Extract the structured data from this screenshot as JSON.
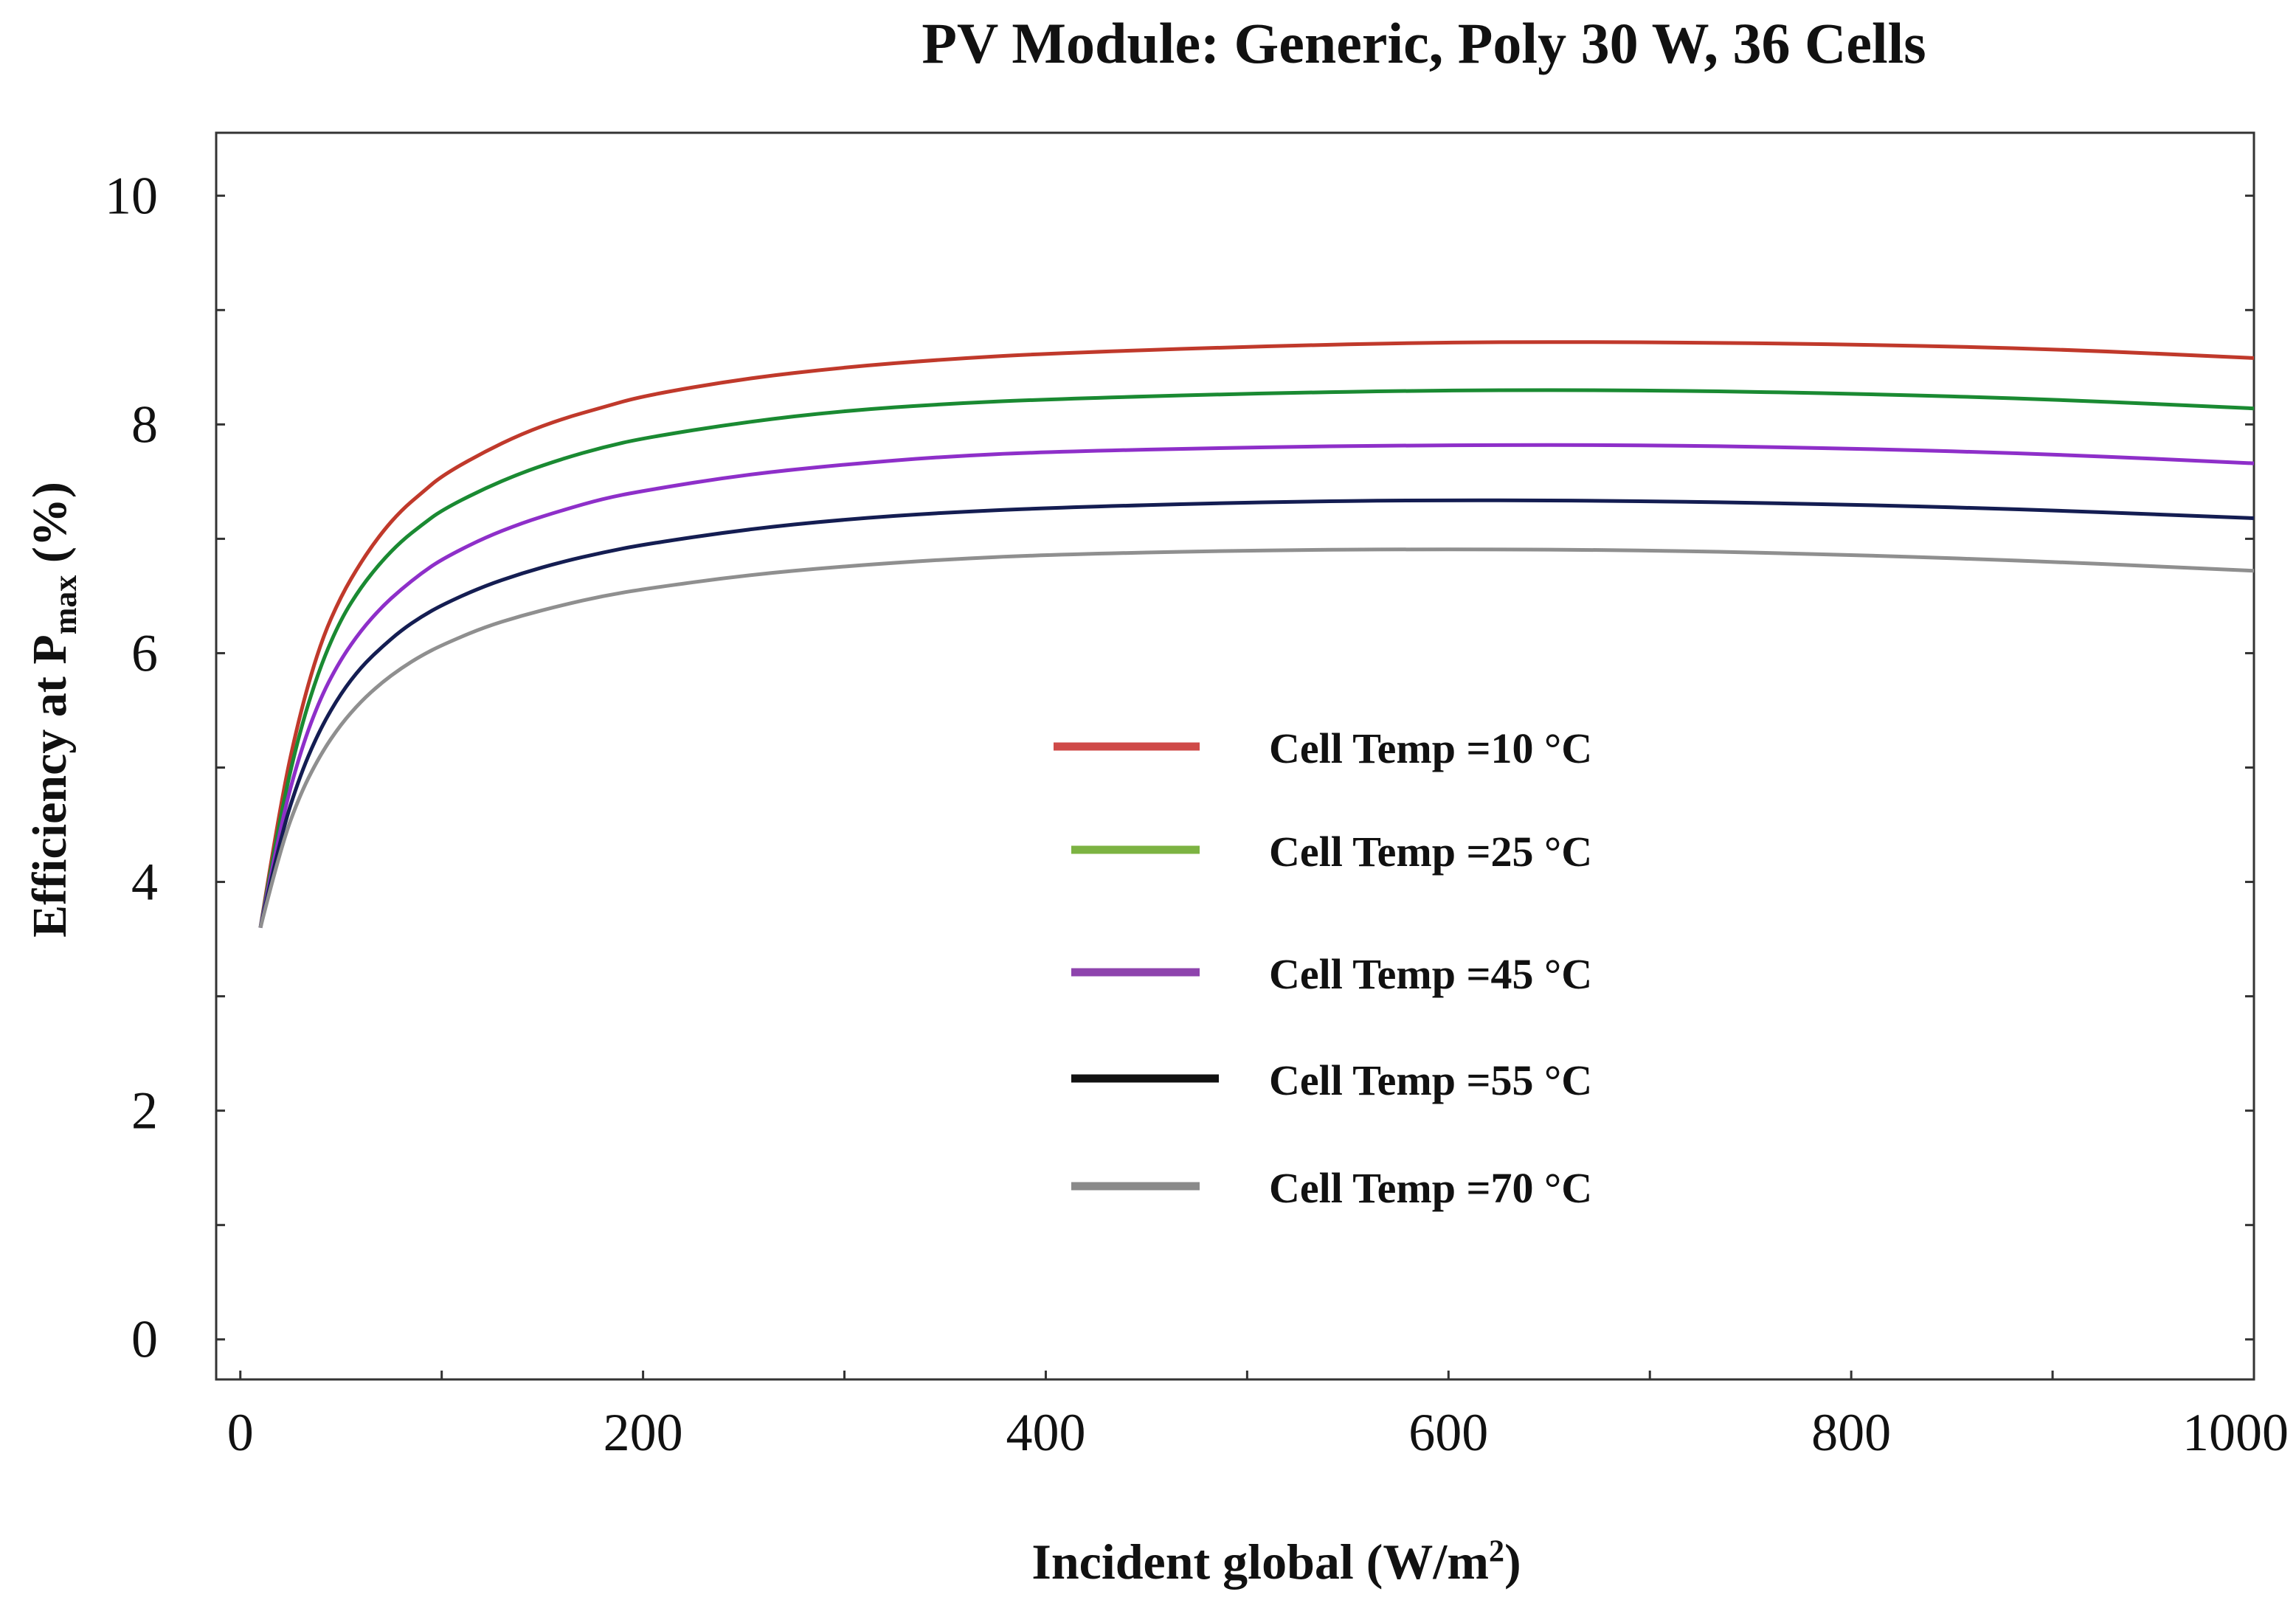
{
  "chart_data": {
    "type": "line",
    "title": "PV Module: Generic, Poly 30 W, 36 Cells",
    "ylabel_main": "Efficiency at P",
    "ylabel_sub": "max",
    "ylabel_tail": " (%)",
    "xlabel_main": "Incident global (W/m",
    "xlabel_sup": "2",
    "xlabel_tail": ")",
    "xlim": [
      -12,
      1000
    ],
    "ylim": [
      -0.35,
      10.55
    ],
    "x_ticks": [
      0,
      200,
      400,
      600,
      800,
      1000
    ],
    "y_ticks": [
      0,
      2,
      4,
      6,
      8,
      10
    ],
    "x": [
      10,
      20,
      30,
      40,
      50,
      60,
      70,
      80,
      90,
      100,
      120,
      140,
      160,
      180,
      200,
      250,
      300,
      350,
      400,
      500,
      600,
      700,
      800,
      900,
      1000
    ],
    "series": [
      {
        "name": "Cell Temp =10 °C",
        "color": "#c0392b",
        "values": [
          3.6,
          4.7,
          5.5,
          6.1,
          6.5,
          6.8,
          7.05,
          7.25,
          7.4,
          7.55,
          7.75,
          7.92,
          8.05,
          8.15,
          8.25,
          8.4,
          8.5,
          8.57,
          8.62,
          8.68,
          8.72,
          8.72,
          8.7,
          8.66,
          8.58
        ]
      },
      {
        "name": "Cell Temp =25 °C",
        "color": "#1a8a32",
        "values": [
          3.6,
          4.6,
          5.35,
          5.9,
          6.3,
          6.58,
          6.8,
          6.98,
          7.12,
          7.25,
          7.43,
          7.58,
          7.7,
          7.8,
          7.88,
          8.02,
          8.12,
          8.18,
          8.22,
          8.27,
          8.3,
          8.3,
          8.27,
          8.22,
          8.14
        ]
      },
      {
        "name": "Cell Temp =45 °C",
        "color": "#8e2fc9",
        "values": [
          3.6,
          4.5,
          5.15,
          5.62,
          5.95,
          6.2,
          6.4,
          6.56,
          6.7,
          6.82,
          7.0,
          7.14,
          7.25,
          7.35,
          7.42,
          7.56,
          7.65,
          7.72,
          7.76,
          7.8,
          7.82,
          7.82,
          7.79,
          7.74,
          7.66
        ]
      },
      {
        "name": "Cell Temp =55 °C",
        "color": "#141d52",
        "values": [
          3.6,
          4.4,
          4.95,
          5.35,
          5.65,
          5.88,
          6.05,
          6.2,
          6.32,
          6.42,
          6.58,
          6.7,
          6.8,
          6.88,
          6.95,
          7.08,
          7.17,
          7.23,
          7.27,
          7.32,
          7.34,
          7.33,
          7.3,
          7.25,
          7.18
        ]
      },
      {
        "name": "Cell Temp =70 °C",
        "color": "#8f8f8f",
        "values": [
          3.6,
          4.3,
          4.78,
          5.12,
          5.38,
          5.58,
          5.74,
          5.87,
          5.98,
          6.07,
          6.22,
          6.33,
          6.42,
          6.5,
          6.56,
          6.68,
          6.76,
          6.82,
          6.86,
          6.9,
          6.91,
          6.9,
          6.86,
          6.8,
          6.72
        ]
      }
    ],
    "legend": [
      {
        "label": "Cell Temp =10 °C",
        "color": "#cf4a48"
      },
      {
        "label": "Cell Temp =25 °C",
        "color": "#7cb342"
      },
      {
        "label": "Cell Temp =45 °C",
        "color": "#8e44ad"
      },
      {
        "label": "Cell Temp =55 °C",
        "color": "#111111"
      },
      {
        "label": "Cell Temp =70 °C",
        "color": "#8a8a8a"
      }
    ],
    "legend_position": "center-right"
  }
}
